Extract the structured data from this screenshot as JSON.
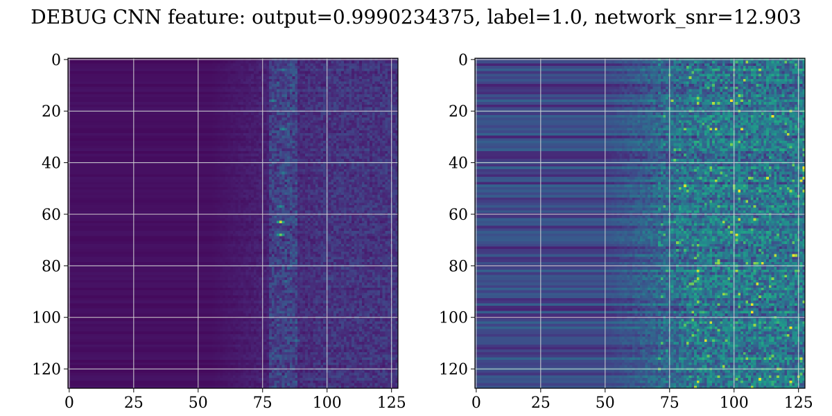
{
  "title": "DEBUG CNN feature: output=0.9990234375, label=1.0, network_snr=12.903",
  "colors": {
    "colormap": "viridis",
    "grid": "#d4d4d4",
    "axes": "#000000"
  },
  "chart_data": [
    {
      "type": "heatmap",
      "panel": "left",
      "title": "",
      "xlabel": "",
      "ylabel": "",
      "shape": [
        128,
        128
      ],
      "xlim": [
        -0.5,
        127.5
      ],
      "ylim": [
        127.5,
        -0.5
      ],
      "xticks": [
        0,
        25,
        50,
        75,
        100,
        125
      ],
      "yticks": [
        0,
        20,
        40,
        60,
        80,
        100,
        120
      ],
      "xtick_labels": [
        "0",
        "25",
        "50",
        "75",
        "100",
        "125"
      ],
      "ytick_labels": [
        "0",
        "20",
        "40",
        "60",
        "80",
        "100",
        "120"
      ],
      "grid": true,
      "colormap": "viridis",
      "pattern": "low uniform values for columns 0-55, noisy activity increasing toward the right, bright vertical band near columns 80-86",
      "hotspots": [
        {
          "row": 63,
          "col": 82,
          "value": 0.95
        },
        {
          "row": 68,
          "col": 82,
          "value": 0.85
        },
        {
          "row": 27,
          "col": 83,
          "value": 0.6
        },
        {
          "row": 57,
          "col": 82,
          "value": 0.6
        },
        {
          "row": 16,
          "col": 79,
          "value": 0.55
        },
        {
          "row": 44,
          "col": 83,
          "value": 0.5
        },
        {
          "row": 4,
          "col": 83,
          "value": 0.5
        },
        {
          "row": 86,
          "col": 84,
          "value": 0.45
        },
        {
          "row": 109,
          "col": 88,
          "value": 0.45
        }
      ]
    },
    {
      "type": "heatmap",
      "panel": "right",
      "title": "",
      "xlabel": "",
      "ylabel": "",
      "shape": [
        128,
        128
      ],
      "xlim": [
        -0.5,
        127.5
      ],
      "ylim": [
        127.5,
        -0.5
      ],
      "xticks": [
        0,
        25,
        50,
        75,
        100,
        125
      ],
      "yticks": [
        0,
        20,
        40,
        60,
        80,
        100,
        120
      ],
      "xtick_labels": [
        "0",
        "25",
        "50",
        "75",
        "100",
        "125"
      ],
      "ytick_labels": [
        "0",
        "20",
        "40",
        "60",
        "80",
        "100",
        "120"
      ],
      "grid": true,
      "colormap": "viridis",
      "pattern": "horizontal striped rows across width, strong noisy activity from column 70 rightward",
      "hotspots": [
        {
          "row": 82,
          "col": 86,
          "value": 0.95
        },
        {
          "row": 15,
          "col": 86,
          "value": 0.9
        },
        {
          "row": 39,
          "col": 77,
          "value": 0.85
        },
        {
          "row": 115,
          "col": 90,
          "value": 0.85
        },
        {
          "row": 43,
          "col": 85,
          "value": 0.8
        },
        {
          "row": 61,
          "col": 100,
          "value": 0.75
        },
        {
          "row": 103,
          "col": 85,
          "value": 0.75
        },
        {
          "row": 1,
          "col": 115,
          "value": 0.7
        },
        {
          "row": 16,
          "col": 120,
          "value": 0.7
        },
        {
          "row": 52,
          "col": 86,
          "value": 0.65
        },
        {
          "row": 76,
          "col": 88,
          "value": 0.6
        },
        {
          "row": 95,
          "col": 97,
          "value": 0.6
        }
      ]
    }
  ]
}
